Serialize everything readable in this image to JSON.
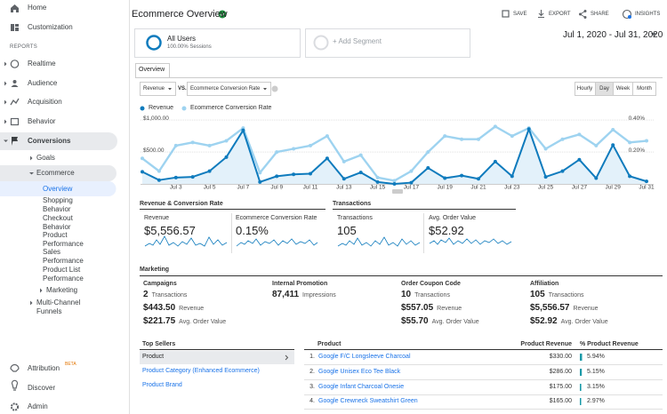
{
  "sidebar": {
    "top": [
      "Home",
      "Customization"
    ],
    "section": "REPORTS",
    "reports": [
      "Realtime",
      "Audience",
      "Acquisition",
      "Behavior",
      "Conversions"
    ],
    "conversions": [
      "Goals",
      "Ecommerce"
    ],
    "ecommerce": [
      "Overview",
      "Shopping Behavior",
      "Checkout Behavior",
      "Product Performance",
      "Sales Performance",
      "Product List Performance",
      "Marketing"
    ],
    "multi_channel": "Multi-Channel Funnels",
    "bottom": [
      "Attribution",
      "Discover",
      "Admin"
    ],
    "beta": "BETA"
  },
  "header": {
    "title": "Ecommerce Overview",
    "actions": [
      "SAVE",
      "EXPORT",
      "SHARE",
      "INSIGHTS"
    ],
    "segment": {
      "name": "All Users",
      "detail": "100.00% Sessions"
    },
    "add_segment": "+ Add Segment",
    "date_range": "Jul 1, 2020 - Jul 31, 2020",
    "tab": "Overview",
    "metric_select": "Revenue",
    "vs": "VS.",
    "compare_select": "Ecommerce Conversion Rate",
    "granularity": [
      "Hourly",
      "Day",
      "Week",
      "Month"
    ]
  },
  "chart_data": {
    "type": "line",
    "categories": [
      null,
      null,
      "Jul 3",
      null,
      "Jul 5",
      null,
      "Jul 7",
      null,
      "Jul 9",
      null,
      "Jul 11",
      null,
      "Jul 13",
      null,
      "Jul 15",
      null,
      "Jul 17",
      null,
      "Jul 19",
      null,
      "Jul 21",
      null,
      "Jul 23",
      null,
      "Jul 25",
      null,
      "Jul 27",
      null,
      "Jul 29",
      null,
      "Jul 31"
    ],
    "series": [
      {
        "name": "Revenue",
        "color": "#0f7bbd",
        "values": [
          190,
          60,
          100,
          110,
          200,
          420,
          840,
          30,
          120,
          150,
          160,
          400,
          80,
          180,
          30,
          0,
          20,
          250,
          90,
          130,
          80,
          350,
          120,
          860,
          110,
          200,
          380,
          90,
          610,
          120,
          40
        ]
      },
      {
        "name": "Ecommerce Conversion Rate",
        "color": "#9ed3f0",
        "axis": "y2",
        "values": [
          0.16,
          0.08,
          0.24,
          0.26,
          0.24,
          0.27,
          0.35,
          0.07,
          0.2,
          0.22,
          0.24,
          0.3,
          0.14,
          0.18,
          0.04,
          0.02,
          0.08,
          0.2,
          0.3,
          0.28,
          0.28,
          0.36,
          0.3,
          0.35,
          0.22,
          0.28,
          0.31,
          0.24,
          0.34,
          0.26,
          0.27
        ]
      }
    ],
    "ylim": [
      0,
      1100
    ],
    "yticks": [
      {
        "value": 500,
        "label": "$500.00"
      },
      {
        "value": 1000,
        "label": "$1,000.00"
      }
    ],
    "y2lim": [
      0,
      0.44
    ],
    "y2ticks": [
      {
        "value": 0.2,
        "label": "0.20%"
      },
      {
        "value": 0.4,
        "label": "0.40%"
      }
    ],
    "grid": true
  },
  "scorecards": {
    "group1": "Revenue & Conversion Rate",
    "group2": "Transactions",
    "cards": [
      {
        "label": "Revenue",
        "value": "$5,556.57"
      },
      {
        "label": "Ecommerce Conversion Rate",
        "value": "0.15%"
      },
      {
        "label": "Transactions",
        "value": "105"
      },
      {
        "label": "Avg. Order Value",
        "value": "$52.92"
      }
    ]
  },
  "marketing": {
    "title": "Marketing",
    "groups": [
      {
        "name": "Campaigns",
        "rows": [
          [
            "2",
            "Transactions"
          ],
          [
            "$443.50",
            "Revenue"
          ],
          [
            "$221.75",
            "Avg. Order Value"
          ]
        ]
      },
      {
        "name": "Internal Promotion",
        "rows": [
          [
            "87,411",
            "Impressions"
          ]
        ]
      },
      {
        "name": "Order Coupon Code",
        "rows": [
          [
            "10",
            "Transactions"
          ],
          [
            "$557.05",
            "Revenue"
          ],
          [
            "$55.70",
            "Avg. Order Value"
          ]
        ]
      },
      {
        "name": "Affiliation",
        "rows": [
          [
            "105",
            "Transactions"
          ],
          [
            "$5,556.57",
            "Revenue"
          ],
          [
            "$52.92",
            "Avg. Order Value"
          ]
        ]
      }
    ]
  },
  "top_sellers": {
    "title": "Top Sellers",
    "items": [
      "Product",
      "Product Category (Enhanced Ecommerce)",
      "Product Brand"
    ],
    "table": {
      "headers": [
        "Product",
        "Product Revenue",
        "% Product Revenue"
      ],
      "rows": [
        [
          "1.",
          "Google F/C Longsleeve Charcoal",
          "$330.00",
          "5.94%"
        ],
        [
          "2.",
          "Google Unisex Eco Tee Black",
          "$286.00",
          "5.15%"
        ],
        [
          "3.",
          "Google Infant Charcoal Onesie",
          "$175.00",
          "3.15%"
        ],
        [
          "4.",
          "Google Crewneck Sweatshirt Green",
          "$165.00",
          "2.97%"
        ]
      ]
    }
  }
}
